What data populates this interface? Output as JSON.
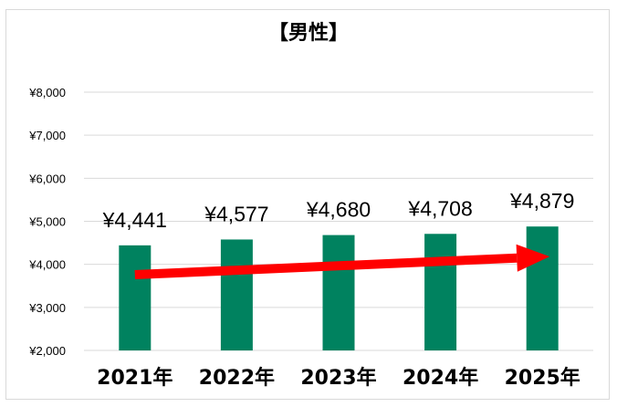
{
  "chart_data": {
    "type": "bar",
    "title": "【男性】",
    "categories": [
      "2021年",
      "2022年",
      "2023年",
      "2024年",
      "2025年"
    ],
    "values": [
      4441,
      4577,
      4680,
      4708,
      4879
    ],
    "data_labels": [
      "¥4,441",
      "¥4,577",
      "¥4,680",
      "¥4,708",
      "¥4,879"
    ],
    "ylim": [
      2000,
      8000
    ],
    "yticks": [
      2000,
      3000,
      4000,
      5000,
      6000,
      7000,
      8000
    ],
    "ytick_labels": [
      "¥2,000",
      "¥3,000",
      "¥4,000",
      "¥5,000",
      "¥6,000",
      "¥7,000",
      "¥8,000"
    ],
    "grid": true,
    "legend": "none",
    "bar_color": "#00825f",
    "trend_arrow_color": "#ff0000"
  }
}
